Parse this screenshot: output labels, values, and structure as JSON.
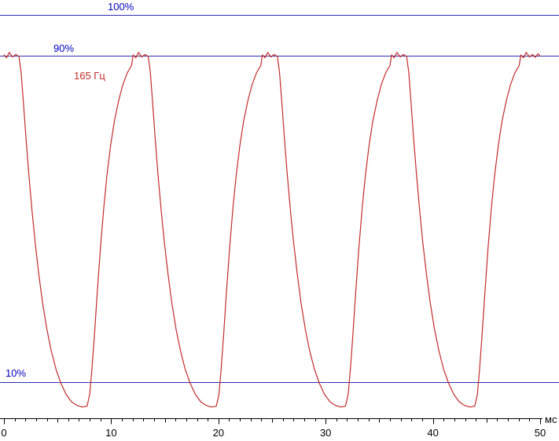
{
  "chart_data": {
    "type": "line",
    "x_unit_label": "мс",
    "x_range": [
      0,
      50
    ],
    "x_ticks_labeled": [
      0,
      10,
      20,
      30,
      40,
      50
    ],
    "x_tick_minor_step": 1,
    "x_tick_medium_step": 5,
    "y_unit": "%",
    "grid": false,
    "reference_lines": [
      {
        "label": "100%",
        "value": 100,
        "color": "#2f2fb3"
      },
      {
        "label": "90%",
        "value": 90,
        "color": "#2f2fb3"
      },
      {
        "label": "10%",
        "value": 10,
        "color": "#2f2fb3"
      }
    ],
    "series": [
      {
        "name": "165 Гц",
        "color": "#c22b2b",
        "points": [
          [
            0,
            90.2
          ],
          [
            0.25,
            89.5
          ],
          [
            0.5,
            90.8
          ],
          [
            0.8,
            89.7
          ],
          [
            1.1,
            90.3
          ],
          [
            1.4,
            89.8
          ],
          [
            1.6,
            86
          ],
          [
            1.8,
            79
          ],
          [
            2.05,
            70
          ],
          [
            2.3,
            61.5
          ],
          [
            2.6,
            52.5
          ],
          [
            2.9,
            44.5
          ],
          [
            3.25,
            36.5
          ],
          [
            3.6,
            29.5
          ],
          [
            4,
            23
          ],
          [
            4.4,
            17.8
          ],
          [
            4.85,
            13.2
          ],
          [
            5.3,
            9.8
          ],
          [
            5.8,
            7
          ],
          [
            6.3,
            5.2
          ],
          [
            6.8,
            4.3
          ],
          [
            7.3,
            3.9
          ],
          [
            7.75,
            4.1
          ],
          [
            8,
            7
          ],
          [
            8.2,
            13
          ],
          [
            8.45,
            22
          ],
          [
            8.7,
            32
          ],
          [
            9,
            43
          ],
          [
            9.3,
            52.5
          ],
          [
            9.6,
            60.5
          ],
          [
            9.95,
            68
          ],
          [
            10.3,
            74
          ],
          [
            10.7,
            79
          ],
          [
            11.1,
            83
          ],
          [
            11.5,
            85.8
          ],
          [
            11.9,
            87.6
          ],
          [
            12.05,
            90.2
          ],
          [
            12.3,
            89.5
          ],
          [
            12.55,
            90.8
          ],
          [
            12.85,
            89.7
          ],
          [
            13.15,
            90.3
          ],
          [
            13.45,
            89.8
          ],
          [
            13.65,
            86
          ],
          [
            13.85,
            79
          ],
          [
            14.1,
            70
          ],
          [
            14.35,
            61.5
          ],
          [
            14.65,
            52.5
          ],
          [
            14.95,
            44.5
          ],
          [
            15.3,
            36.5
          ],
          [
            15.65,
            29.5
          ],
          [
            16.05,
            23
          ],
          [
            16.45,
            17.8
          ],
          [
            16.9,
            13.2
          ],
          [
            17.35,
            9.8
          ],
          [
            17.85,
            7
          ],
          [
            18.35,
            5.2
          ],
          [
            18.85,
            4.3
          ],
          [
            19.35,
            3.9
          ],
          [
            19.8,
            4.1
          ],
          [
            20.05,
            7
          ],
          [
            20.25,
            13
          ],
          [
            20.5,
            22
          ],
          [
            20.75,
            32
          ],
          [
            21.05,
            43
          ],
          [
            21.35,
            52.5
          ],
          [
            21.65,
            60.5
          ],
          [
            22,
            68
          ],
          [
            22.35,
            74
          ],
          [
            22.75,
            79
          ],
          [
            23.15,
            83
          ],
          [
            23.55,
            85.8
          ],
          [
            23.95,
            87.6
          ],
          [
            24.1,
            90.2
          ],
          [
            24.35,
            89.5
          ],
          [
            24.6,
            90.8
          ],
          [
            24.9,
            89.7
          ],
          [
            25.2,
            90.3
          ],
          [
            25.5,
            89.8
          ],
          [
            25.7,
            86
          ],
          [
            25.9,
            79
          ],
          [
            26.15,
            70
          ],
          [
            26.4,
            61.5
          ],
          [
            26.7,
            52.5
          ],
          [
            27,
            44.5
          ],
          [
            27.35,
            36.5
          ],
          [
            27.7,
            29.5
          ],
          [
            28.1,
            23
          ],
          [
            28.5,
            17.8
          ],
          [
            28.95,
            13.2
          ],
          [
            29.4,
            9.8
          ],
          [
            29.9,
            7
          ],
          [
            30.4,
            5.2
          ],
          [
            30.9,
            4.3
          ],
          [
            31.4,
            3.9
          ],
          [
            31.85,
            4.1
          ],
          [
            32.1,
            7
          ],
          [
            32.3,
            13
          ],
          [
            32.55,
            22
          ],
          [
            32.8,
            32
          ],
          [
            33.1,
            43
          ],
          [
            33.4,
            52.5
          ],
          [
            33.7,
            60.5
          ],
          [
            34.05,
            68
          ],
          [
            34.4,
            74
          ],
          [
            34.8,
            79
          ],
          [
            35.2,
            83
          ],
          [
            35.6,
            85.8
          ],
          [
            36,
            87.6
          ],
          [
            36.15,
            90.2
          ],
          [
            36.4,
            89.5
          ],
          [
            36.65,
            90.8
          ],
          [
            36.95,
            89.7
          ],
          [
            37.25,
            90.3
          ],
          [
            37.55,
            89.8
          ],
          [
            37.75,
            86
          ],
          [
            37.95,
            79
          ],
          [
            38.2,
            70
          ],
          [
            38.45,
            61.5
          ],
          [
            38.75,
            52.5
          ],
          [
            39.05,
            44.5
          ],
          [
            39.4,
            36.5
          ],
          [
            39.75,
            29.5
          ],
          [
            40.15,
            23
          ],
          [
            40.55,
            17.8
          ],
          [
            41,
            13.2
          ],
          [
            41.45,
            9.8
          ],
          [
            41.95,
            7
          ],
          [
            42.45,
            5.2
          ],
          [
            42.95,
            4.3
          ],
          [
            43.45,
            3.9
          ],
          [
            43.9,
            4.1
          ],
          [
            44.15,
            7
          ],
          [
            44.35,
            13
          ],
          [
            44.6,
            22
          ],
          [
            44.85,
            32
          ],
          [
            45.15,
            43
          ],
          [
            45.45,
            52.5
          ],
          [
            45.75,
            60.5
          ],
          [
            46.1,
            68
          ],
          [
            46.45,
            74
          ],
          [
            46.85,
            79
          ],
          [
            47.25,
            83
          ],
          [
            47.65,
            85.8
          ],
          [
            48.05,
            87.6
          ],
          [
            48.2,
            90.2
          ],
          [
            48.45,
            89.5
          ],
          [
            48.7,
            90.8
          ],
          [
            49,
            89.7
          ],
          [
            49.3,
            90.3
          ],
          [
            49.55,
            89.6
          ],
          [
            49.8,
            90.5
          ],
          [
            50,
            89.9
          ]
        ]
      }
    ]
  },
  "colors": {
    "line_blue": "#2f2fb3",
    "text_blue": "#0000bb",
    "curve_red": "#c22b2b",
    "axis_black": "#000000"
  }
}
